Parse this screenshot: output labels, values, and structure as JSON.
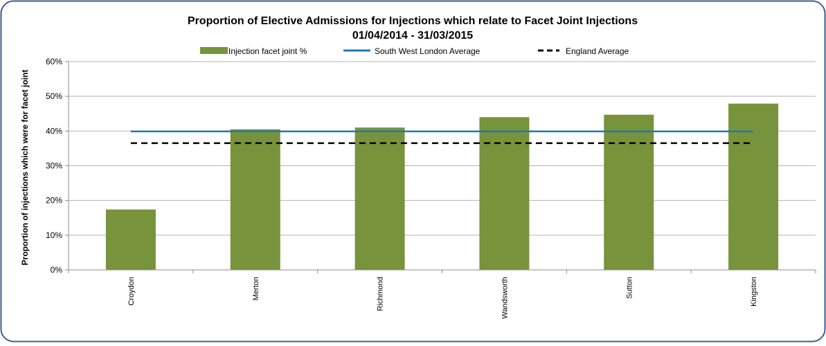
{
  "chart_data": {
    "type": "bar",
    "title": "Proportion of Elective Admissions for Injections which relate to Facet Joint Injections",
    "subtitle": "01/04/2014 - 31/03/2015",
    "xlabel": "",
    "ylabel": "Proportion of injections which were for facet joint",
    "categories": [
      "Croydon",
      "Merton",
      "Richmond",
      "Wandsworth",
      "Sutton",
      "Kingston"
    ],
    "series": [
      {
        "name": "Injection facet joint %",
        "kind": "bar",
        "color": "#77933c",
        "values": [
          0.174,
          0.405,
          0.41,
          0.44,
          0.447,
          0.479
        ]
      },
      {
        "name": "South West London Average",
        "kind": "line",
        "color": "#1f78b4",
        "value": 0.399
      },
      {
        "name": "England Average",
        "kind": "dashed-line",
        "color": "#000000",
        "value": 0.365
      }
    ],
    "ylim": [
      0,
      0.6
    ],
    "yticks": [
      "0%",
      "10%",
      "20%",
      "30%",
      "40%",
      "50%",
      "60%"
    ],
    "grid": true,
    "legend": "top"
  }
}
